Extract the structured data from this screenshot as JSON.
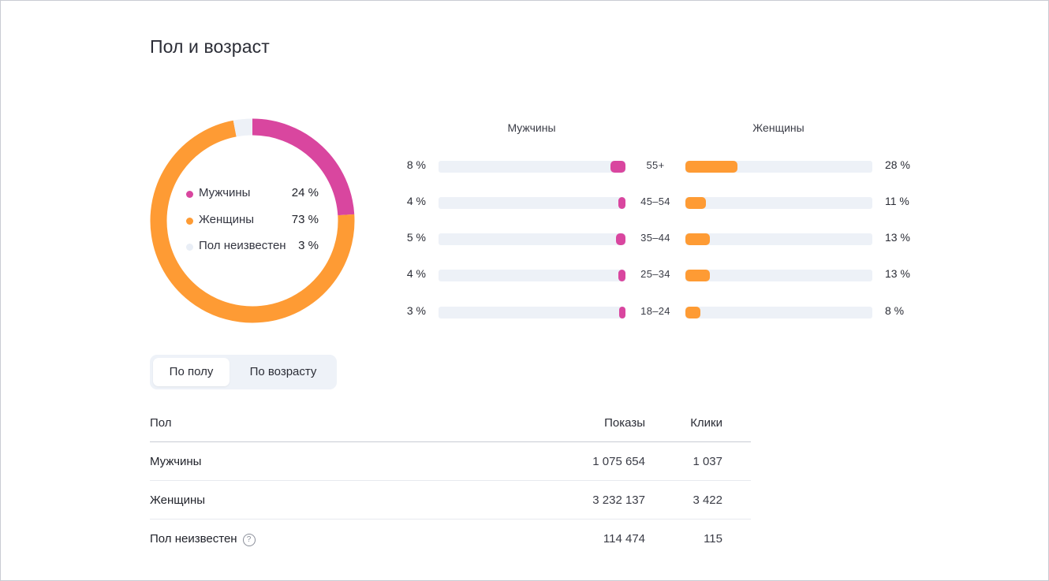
{
  "page": {
    "title": "Пол и возраст"
  },
  "gender_summary": {
    "items": [
      {
        "label": "Мужчины",
        "value": "24 %",
        "share": 24,
        "color": "#d9469f"
      },
      {
        "label": "Женщины",
        "value": "73 %",
        "share": 73,
        "color": "#fe9b34"
      },
      {
        "label": "Пол неизвестен",
        "value": "3 %",
        "share": 3,
        "color": "#edf1f7"
      }
    ]
  },
  "age_breakdown": {
    "men_header": "Мужчины",
    "women_header": "Женщины",
    "rows": [
      {
        "age": "55+",
        "men": "8 %",
        "men_value": 8,
        "women": "28 %",
        "women_value": 28
      },
      {
        "age": "45–54",
        "men": "4 %",
        "men_value": 4,
        "women": "11 %",
        "women_value": 11
      },
      {
        "age": "35–44",
        "men": "5 %",
        "men_value": 5,
        "women": "13 %",
        "women_value": 13
      },
      {
        "age": "25–34",
        "men": "4 %",
        "men_value": 4,
        "women": "13 %",
        "women_value": 13
      },
      {
        "age": "18–24",
        "men": "3 %",
        "men_value": 3,
        "women": "8 %",
        "women_value": 8
      }
    ]
  },
  "tabs": [
    {
      "label": "По полу",
      "active": true
    },
    {
      "label": "По возрасту",
      "active": false
    }
  ],
  "table": {
    "headers": {
      "name": "Пол",
      "shows": "Показы",
      "clicks": "Клики"
    },
    "rows": [
      {
        "name": "Мужчины",
        "shows": "1 075 654",
        "clicks": "1 037"
      },
      {
        "name": "Женщины",
        "shows": "3 232 137",
        "clicks": "3 422"
      },
      {
        "name": "Пол неизвестен",
        "shows": "114 474",
        "clicks": "115"
      }
    ],
    "help_icon": "question-circle-icon"
  },
  "chart_data": [
    {
      "type": "pie",
      "categories": [
        "Мужчины",
        "Женщины",
        "Пол неизвестен"
      ],
      "values": [
        24,
        73,
        3
      ]
    },
    {
      "type": "bar",
      "categories": [
        "55+",
        "45–54",
        "35–44",
        "25–34",
        "18–24"
      ],
      "series": [
        {
          "name": "Мужчины",
          "values": [
            8,
            4,
            5,
            4,
            3
          ]
        },
        {
          "name": "Женщины",
          "values": [
            28,
            11,
            13,
            13,
            8
          ]
        }
      ]
    }
  ]
}
